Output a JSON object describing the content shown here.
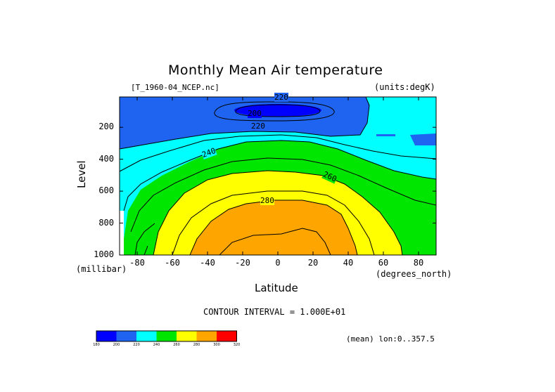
{
  "chart_data": {
    "type": "heatmap",
    "subtype": "filled-contour",
    "title": "Monthly Mean Air temperature",
    "file_label": "[T_1960-04_NCEP.nc]",
    "units_label": "(units:degK)",
    "xlabel": "Latitude",
    "ylabel": "Level",
    "x_units": "(degrees_north)",
    "y_units": "(millibar)",
    "xlim": [
      -90,
      90
    ],
    "ylim": [
      1000,
      10
    ],
    "y_reversed": true,
    "x_ticks": [
      -80,
      -60,
      -40,
      -20,
      0,
      20,
      40,
      60,
      80
    ],
    "y_ticks": [
      200,
      400,
      600,
      800,
      1000
    ],
    "contour_interval_text": "CONTOUR INTERVAL = 1.000E+01",
    "mean_note": "(mean) lon:0..357.5",
    "contour_labels": [
      "200",
      "220",
      "220",
      "240",
      "260",
      "280"
    ],
    "colorbar": {
      "levels": [
        "180",
        "200",
        "220",
        "240",
        "260",
        "280",
        "300",
        "320"
      ],
      "colors": [
        "#0000ff",
        "#1e64f0",
        "#00ffff",
        "#00e600",
        "#ffff00",
        "#ffa500",
        "#ff0000"
      ]
    },
    "bands": [
      {
        "range": "200-220",
        "color": "#1e64f0"
      },
      {
        "range": "220-240",
        "color": "#00ffff"
      },
      {
        "range": "240-260",
        "color": "#00e600"
      },
      {
        "range": "260-280",
        "color": "#ffff00"
      },
      {
        "range": "280-300",
        "color": "#ffa500"
      }
    ]
  }
}
